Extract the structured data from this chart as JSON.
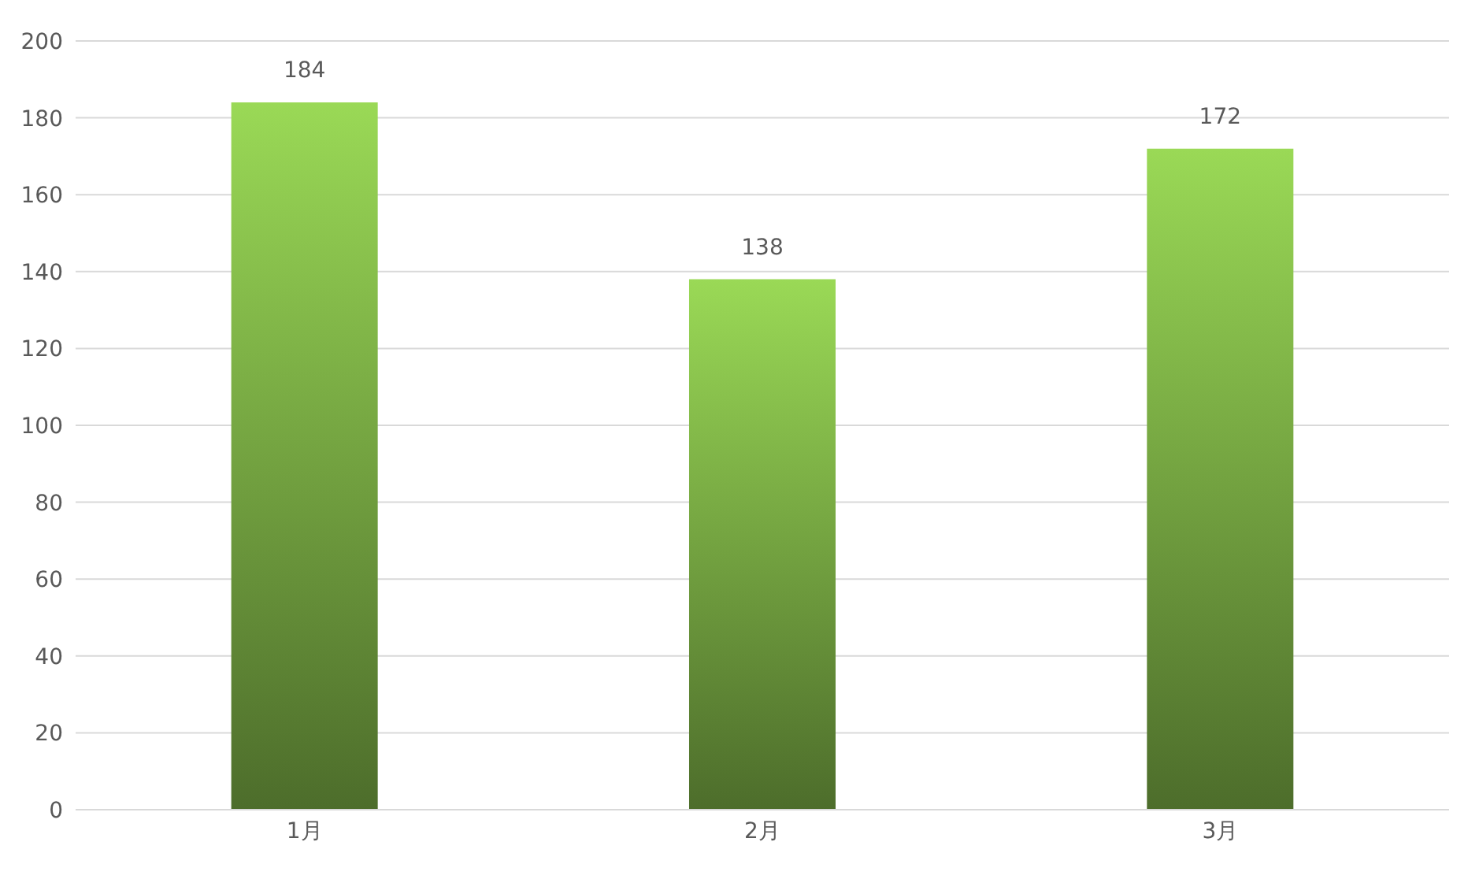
{
  "chart_data": {
    "type": "bar",
    "categories": [
      "1月",
      "2月",
      "3月"
    ],
    "values": [
      184,
      138,
      172
    ],
    "color": "#9ad956",
    "ylim": [
      0,
      200
    ],
    "yticks": [
      0,
      20,
      40,
      60,
      80,
      100,
      120,
      140,
      160,
      180,
      200
    ],
    "grid": "y",
    "data_labels": true
  }
}
